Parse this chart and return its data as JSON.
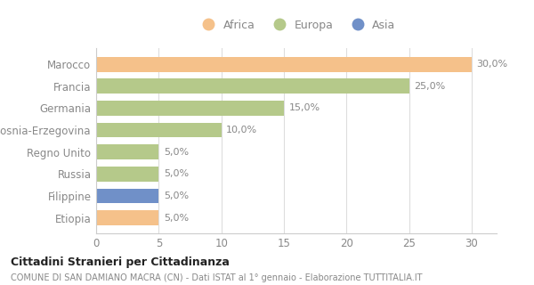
{
  "categories": [
    "Marocco",
    "Francia",
    "Germania",
    "Bosnia-Erzegovina",
    "Regno Unito",
    "Russia",
    "Filippine",
    "Etiopia"
  ],
  "values": [
    30.0,
    25.0,
    15.0,
    10.0,
    5.0,
    5.0,
    5.0,
    5.0
  ],
  "colors": [
    "#f5c18a",
    "#b5c98a",
    "#b5c98a",
    "#b5c98a",
    "#b5c98a",
    "#b5c98a",
    "#7090c8",
    "#f5c18a"
  ],
  "legend_labels": [
    "Africa",
    "Europa",
    "Asia"
  ],
  "legend_colors": [
    "#f5c18a",
    "#b5c98a",
    "#7090c8"
  ],
  "xlim": [
    0,
    32
  ],
  "xticks": [
    0,
    5,
    10,
    15,
    20,
    25,
    30
  ],
  "title_bold": "Cittadini Stranieri per Cittadinanza",
  "subtitle": "COMUNE DI SAN DAMIANO MACRA (CN) - Dati ISTAT al 1° gennaio - Elaborazione TUTTITALIA.IT",
  "bg_color": "#ffffff",
  "bar_height": 0.68,
  "text_color": "#888888",
  "title_color": "#222222"
}
